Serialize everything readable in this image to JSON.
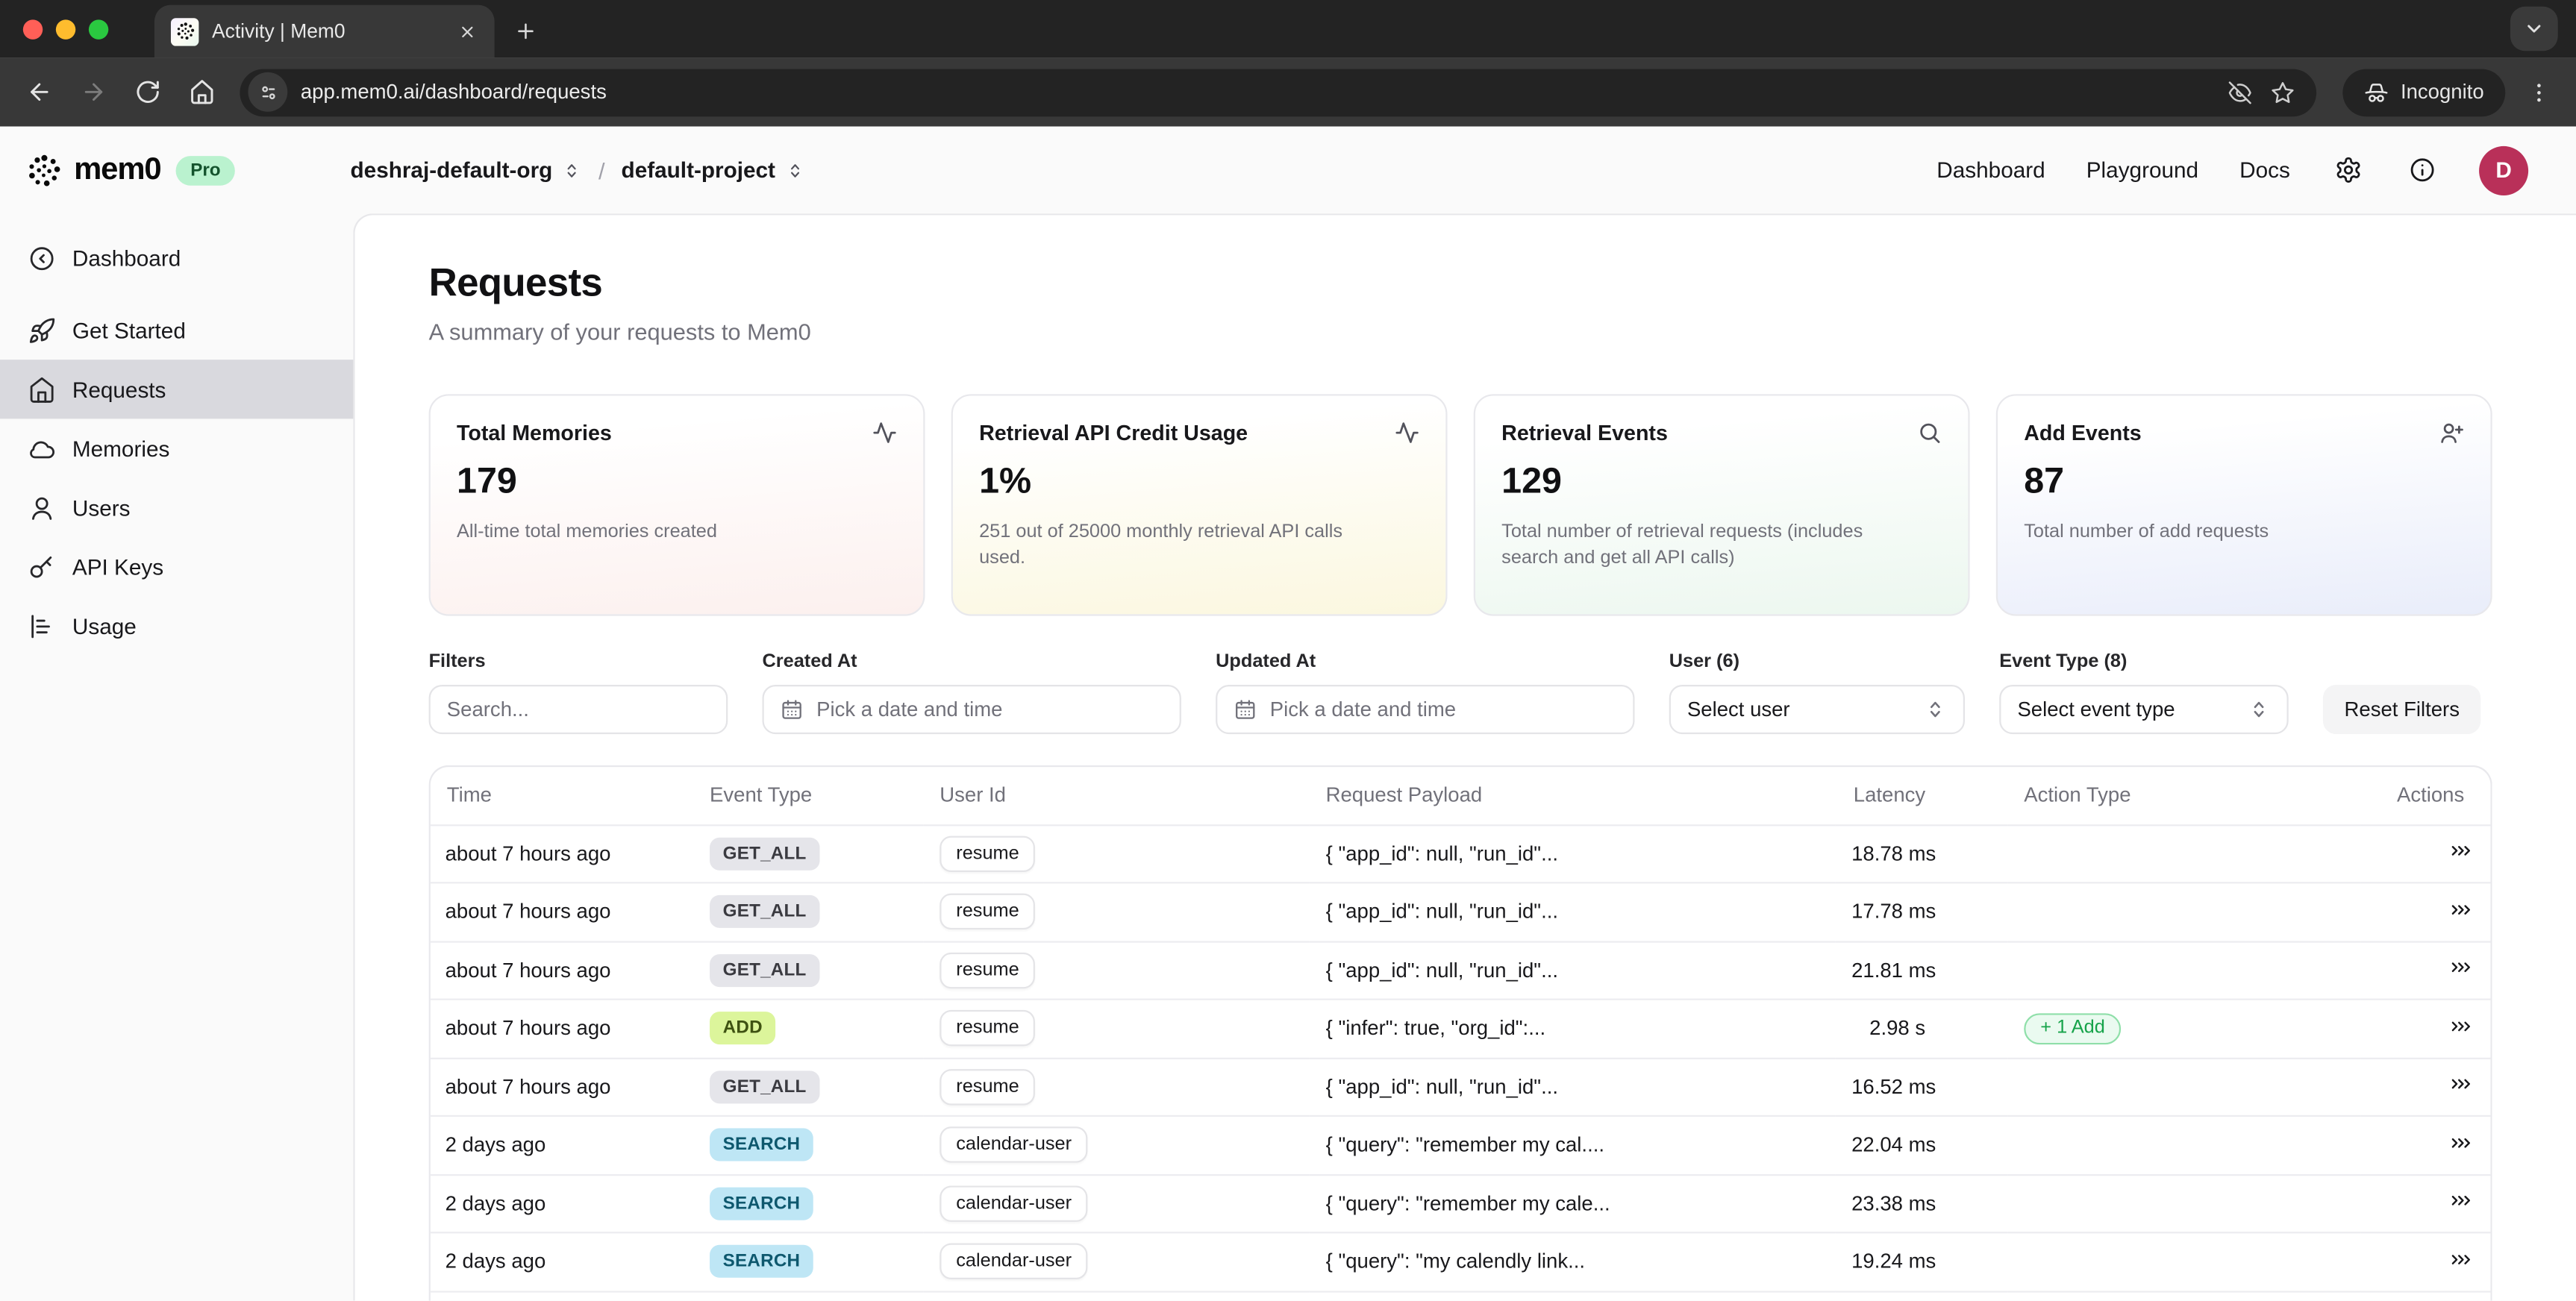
{
  "browser": {
    "tab_title": "Activity | Mem0",
    "url": "app.mem0.ai/dashboard/requests",
    "incognito_label": "Incognito"
  },
  "header": {
    "logo_text": "mem0",
    "plan_badge": "Pro",
    "org": "deshraj-default-org",
    "breadcrumb_separator": "/",
    "project": "default-project",
    "nav": [
      "Dashboard",
      "Playground",
      "Docs"
    ],
    "avatar_initial": "D"
  },
  "sidebar": {
    "items": [
      {
        "label": "Dashboard",
        "icon": "circle-arrow-left",
        "active": false,
        "section_end": true
      },
      {
        "label": "Get Started",
        "icon": "rocket",
        "active": false
      },
      {
        "label": "Requests",
        "icon": "house",
        "active": true
      },
      {
        "label": "Memories",
        "icon": "cloud",
        "active": false
      },
      {
        "label": "Users",
        "icon": "user",
        "active": false
      },
      {
        "label": "API Keys",
        "icon": "key",
        "active": false
      },
      {
        "label": "Usage",
        "icon": "chart",
        "active": false
      }
    ]
  },
  "page": {
    "title": "Requests",
    "subtitle": "A summary of your requests to Mem0"
  },
  "stats": {
    "cards": [
      {
        "title": "Total Memories",
        "value": "179",
        "description": "All-time total memories created",
        "icon": "activity",
        "tint": "rose"
      },
      {
        "title": "Retrieval API Credit Usage",
        "value": "1%",
        "description": "251 out of 25000 monthly retrieval API calls used.",
        "icon": "activity",
        "tint": "yellow"
      },
      {
        "title": "Retrieval Events",
        "value": "129",
        "description": "Total number of retrieval requests (includes search and get all API calls)",
        "icon": "search",
        "tint": "green"
      },
      {
        "title": "Add Events",
        "value": "87",
        "description": "Total number of add requests",
        "icon": "user-plus",
        "tint": "indigo"
      }
    ]
  },
  "filters": {
    "search": {
      "label": "Filters",
      "placeholder": "Search..."
    },
    "created_at": {
      "label": "Created At",
      "placeholder": "Pick a date and time"
    },
    "updated_at": {
      "label": "Updated At",
      "placeholder": "Pick a date and time"
    },
    "user": {
      "label": "User (6)",
      "value": "Select user"
    },
    "event_type": {
      "label": "Event Type (8)",
      "value": "Select event type"
    },
    "reset_label": "Reset Filters"
  },
  "table": {
    "columns": [
      "Time",
      "Event Type",
      "User Id",
      "Request Payload",
      "Latency",
      "Action Type",
      "Actions"
    ],
    "rows": [
      {
        "time": "about 7 hours ago",
        "event_type": "GET_ALL",
        "event_variant": "gray",
        "user_id": "resume",
        "payload": "{ \"app_id\": null, \"run_id\"...",
        "latency": "18.78 ms",
        "action_badge": ""
      },
      {
        "time": "about 7 hours ago",
        "event_type": "GET_ALL",
        "event_variant": "gray",
        "user_id": "resume",
        "payload": "{ \"app_id\": null, \"run_id\"...",
        "latency": "17.78 ms",
        "action_badge": ""
      },
      {
        "time": "about 7 hours ago",
        "event_type": "GET_ALL",
        "event_variant": "gray",
        "user_id": "resume",
        "payload": "{ \"app_id\": null, \"run_id\"...",
        "latency": "21.81 ms",
        "action_badge": ""
      },
      {
        "time": "about 7 hours ago",
        "event_type": "ADD",
        "event_variant": "lime",
        "user_id": "resume",
        "payload": "{ \"infer\": true, \"org_id\":...",
        "latency": "2.98 s",
        "action_badge": "+ 1 Add"
      },
      {
        "time": "about 7 hours ago",
        "event_type": "GET_ALL",
        "event_variant": "gray",
        "user_id": "resume",
        "payload": "{ \"app_id\": null, \"run_id\"...",
        "latency": "16.52 ms",
        "action_badge": ""
      },
      {
        "time": "2 days ago",
        "event_type": "SEARCH",
        "event_variant": "sky",
        "user_id": "calendar-user",
        "payload": "{ \"query\": \"remember my cal....",
        "latency": "22.04 ms",
        "action_badge": ""
      },
      {
        "time": "2 days ago",
        "event_type": "SEARCH",
        "event_variant": "sky",
        "user_id": "calendar-user",
        "payload": "{ \"query\": \"remember my cale...",
        "latency": "23.38 ms",
        "action_badge": ""
      },
      {
        "time": "2 days ago",
        "event_type": "SEARCH",
        "event_variant": "sky",
        "user_id": "calendar-user",
        "payload": "{ \"query\": \"my calendly link...",
        "latency": "19.24 ms",
        "action_badge": ""
      }
    ]
  },
  "theme": {
    "accent_green_badge": "#baf2cf",
    "avatar_color": "#b93059",
    "badge_gray": "#e5e5ea",
    "badge_lime": "#dcf59b",
    "badge_sky": "#bee6f5",
    "add_pill_green": "#16a34a",
    "sidebar_active_bg": "#d9d9de",
    "chrome_dark": "#232323"
  }
}
